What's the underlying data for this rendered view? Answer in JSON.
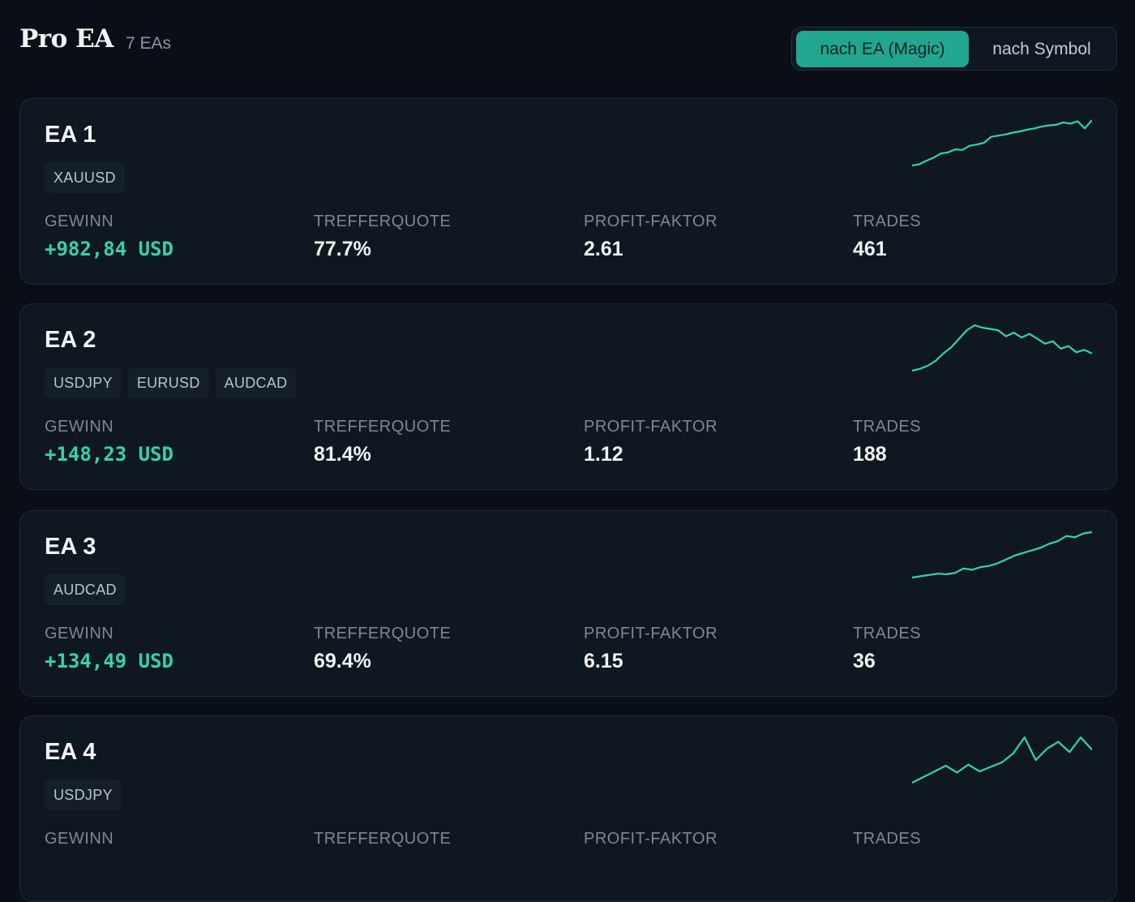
{
  "header": {
    "title": "Pro EA",
    "count": "7 EAs",
    "toggle": {
      "active_label": "nach EA (Magic)",
      "inactive_label": "nach Symbol"
    }
  },
  "labels": {
    "profit": "GEWINN",
    "winrate": "TREFFERQUOTE",
    "profit_factor": "PROFIT-FAKTOR",
    "trades": "TRADES"
  },
  "colors": {
    "accent": "#23a690",
    "profit": "#34d3a9",
    "background": "#0a0f17",
    "card": "#0f1820"
  },
  "cards": [
    {
      "name": "EA 1",
      "symbols": [
        "XAUUSD"
      ],
      "profit": "+982,84 USD",
      "winrate": "77.7%",
      "profit_factor": "2.61",
      "trades": "461",
      "sparkline": [
        0,
        2,
        8,
        13,
        20,
        22,
        27,
        26,
        33,
        35,
        38,
        48,
        50,
        52,
        55,
        57,
        60,
        62,
        65,
        67,
        68,
        72,
        70,
        74,
        62,
        76
      ]
    },
    {
      "name": "EA 2",
      "symbols": [
        "USDJPY",
        "EURUSD",
        "AUDCAD"
      ],
      "profit": "+148,23 USD",
      "winrate": "81.4%",
      "profit_factor": "1.12",
      "trades": "188",
      "sparkline": [
        0,
        3,
        8,
        16,
        28,
        38,
        52,
        66,
        74,
        70,
        68,
        66,
        56,
        62,
        54,
        60,
        52,
        44,
        48,
        36,
        40,
        30,
        34,
        28
      ]
    },
    {
      "name": "EA 3",
      "symbols": [
        "AUDCAD"
      ],
      "profit": "+134,49 USD",
      "winrate": "69.4%",
      "profit_factor": "6.15",
      "trades": "36",
      "sparkline": [
        0,
        2,
        4,
        6,
        5,
        7,
        14,
        12,
        16,
        18,
        22,
        28,
        34,
        38,
        42,
        46,
        52,
        56,
        64,
        62,
        68,
        70
      ]
    },
    {
      "name": "EA 4",
      "symbols": [
        "USDJPY"
      ],
      "profit": "",
      "winrate": "",
      "profit_factor": "",
      "trades": "",
      "sparkline": [
        0,
        10,
        20,
        30,
        18,
        32,
        20,
        28,
        36,
        52,
        80,
        40,
        60,
        72,
        54,
        80,
        58
      ]
    }
  ]
}
